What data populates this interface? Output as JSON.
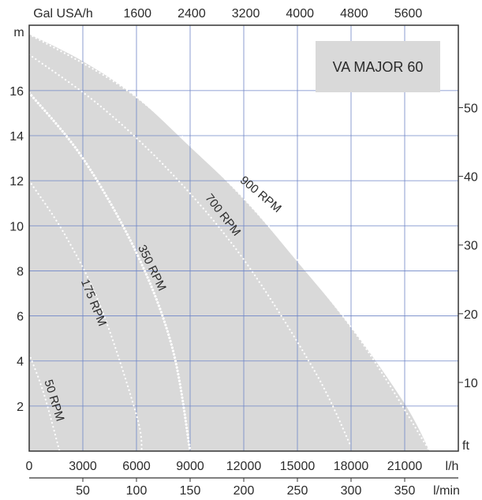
{
  "chart_data": {
    "type": "line",
    "title": "VA MAJOR 60",
    "x_bottom": {
      "unit": "l/h",
      "range": [
        0,
        24000
      ],
      "ticks": [
        0,
        3000,
        6000,
        9000,
        12000,
        15000,
        18000,
        21000
      ],
      "tick_labels": [
        "0",
        "3000",
        "6000",
        "9000",
        "12000",
        "15000",
        "18000",
        "21000"
      ]
    },
    "x_bottom_secondary": {
      "unit": "l/min",
      "range": [
        0,
        400
      ],
      "ticks": [
        50,
        100,
        150,
        200,
        250,
        300,
        350
      ],
      "tick_labels": [
        "50",
        "100",
        "150",
        "200",
        "250",
        "300",
        "350"
      ]
    },
    "x_top": {
      "unit": "Gal USA/h",
      "range": [
        0,
        6340
      ],
      "ticks": [
        1600,
        2400,
        3200,
        4000,
        4800,
        5600
      ],
      "tick_labels": [
        "1600",
        "2400",
        "3200",
        "4000",
        "4800",
        "5600"
      ]
    },
    "y_left": {
      "unit": "m",
      "range": [
        0,
        18.9
      ],
      "ticks": [
        2,
        4,
        6,
        8,
        10,
        12,
        14,
        16
      ],
      "tick_labels": [
        "2",
        "4",
        "6",
        "8",
        "10",
        "12",
        "14",
        "16"
      ]
    },
    "y_right": {
      "unit": "ft",
      "range": [
        0,
        62
      ],
      "ticks": [
        10,
        20,
        30,
        40,
        50
      ],
      "tick_labels": [
        "10",
        "20",
        "30",
        "40",
        "50"
      ]
    },
    "grid": true,
    "envelope": {
      "x": [
        0,
        3000,
        6000,
        9000,
        12000,
        15000,
        18000,
        21000,
        22400
      ],
      "y": [
        18.5,
        17.3,
        15.7,
        13.5,
        11.2,
        8.4,
        5.5,
        2.1,
        0
      ]
    },
    "series": [
      {
        "name": "50 RPM",
        "x": [
          0,
          800,
          1700
        ],
        "y": [
          4.3,
          2.6,
          0
        ]
      },
      {
        "name": "175 RPM",
        "x": [
          0,
          2000,
          4000,
          6000,
          6300
        ],
        "y": [
          12.0,
          9.6,
          6.4,
          1.6,
          0
        ]
      },
      {
        "name": "350 RPM",
        "x": [
          0,
          3000,
          6000,
          8000,
          9000
        ],
        "y": [
          15.9,
          13.0,
          8.8,
          4.6,
          0
        ]
      },
      {
        "name": "700 RPM",
        "x": [
          0,
          4000,
          8000,
          12000,
          16000,
          18000
        ],
        "y": [
          17.6,
          15.3,
          12.3,
          8.5,
          3.5,
          0.2
        ]
      },
      {
        "name": "900 RPM",
        "x": [
          0,
          6000,
          12000,
          18000,
          22400
        ],
        "y": [
          18.5,
          15.7,
          11.2,
          5.5,
          0
        ]
      }
    ],
    "curve_labels": [
      "50 RPM",
      "175 RPM",
      "350 RPM",
      "700 RPM",
      "900 RPM"
    ],
    "colors": {
      "envelope": "#d9d9d9",
      "grid": "#6f86c7",
      "curve": "#ffffff",
      "axis": "#333333",
      "title_box": "#d9d9d9"
    }
  }
}
